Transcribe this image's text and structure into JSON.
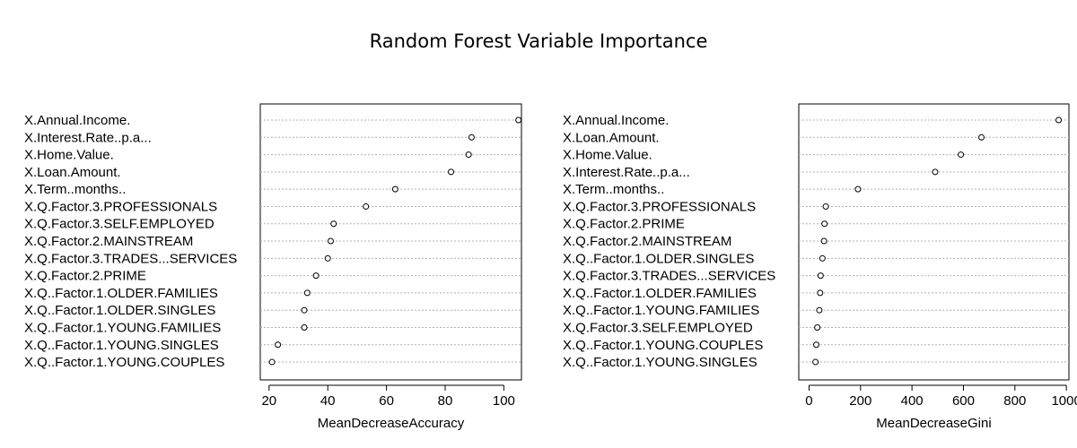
{
  "title": "Random Forest Variable Importance",
  "chart_data": [
    {
      "type": "scatter",
      "xlabel": "MeanDecreaseAccuracy",
      "ylabel": "",
      "xlim": [
        17,
        106
      ],
      "xticks": [
        20,
        40,
        60,
        80,
        100
      ],
      "grid": "horizontal-dotted",
      "categories": [
        "X.Annual.Income.",
        "X.Interest.Rate..p.a...",
        "X.Home.Value.",
        "X.Loan.Amount.",
        "X.Term..months..",
        "X.Q.Factor.3.PROFESSIONALS",
        "X.Q.Factor.3.SELF.EMPLOYED",
        "X.Q.Factor.2.MAINSTREAM",
        "X.Q.Factor.3.TRADES...SERVICES",
        "X.Q.Factor.2.PRIME",
        "X.Q..Factor.1.OLDER.FAMILIES",
        "X.Q..Factor.1.OLDER.SINGLES",
        "X.Q..Factor.1.YOUNG.FAMILIES",
        "X.Q..Factor.1.YOUNG.SINGLES",
        "X.Q..Factor.1.YOUNG.COUPLES"
      ],
      "values": [
        105,
        89,
        88,
        82,
        63,
        53,
        42,
        41,
        40,
        36,
        33,
        32,
        32,
        23,
        21
      ]
    },
    {
      "type": "scatter",
      "xlabel": "MeanDecreaseGini",
      "ylabel": "",
      "xlim": [
        -40,
        1010
      ],
      "xticks": [
        0,
        200,
        400,
        600,
        800,
        1000
      ],
      "grid": "horizontal-dotted",
      "categories": [
        "X.Annual.Income.",
        "X.Loan.Amount.",
        "X.Home.Value.",
        "X.Interest.Rate..p.a...",
        "X.Term..months..",
        "X.Q.Factor.3.PROFESSIONALS",
        "X.Q.Factor.2.PRIME",
        "X.Q.Factor.2.MAINSTREAM",
        "X.Q..Factor.1.OLDER.SINGLES",
        "X.Q.Factor.3.TRADES...SERVICES",
        "X.Q..Factor.1.OLDER.FAMILIES",
        "X.Q..Factor.1.YOUNG.FAMILIES",
        "X.Q.Factor.3.SELF.EMPLOYED",
        "X.Q..Factor.1.YOUNG.COUPLES",
        "X.Q..Factor.1.YOUNG.SINGLES"
      ],
      "values": [
        970,
        670,
        590,
        490,
        190,
        65,
        60,
        58,
        52,
        45,
        43,
        40,
        32,
        28,
        25
      ]
    }
  ]
}
